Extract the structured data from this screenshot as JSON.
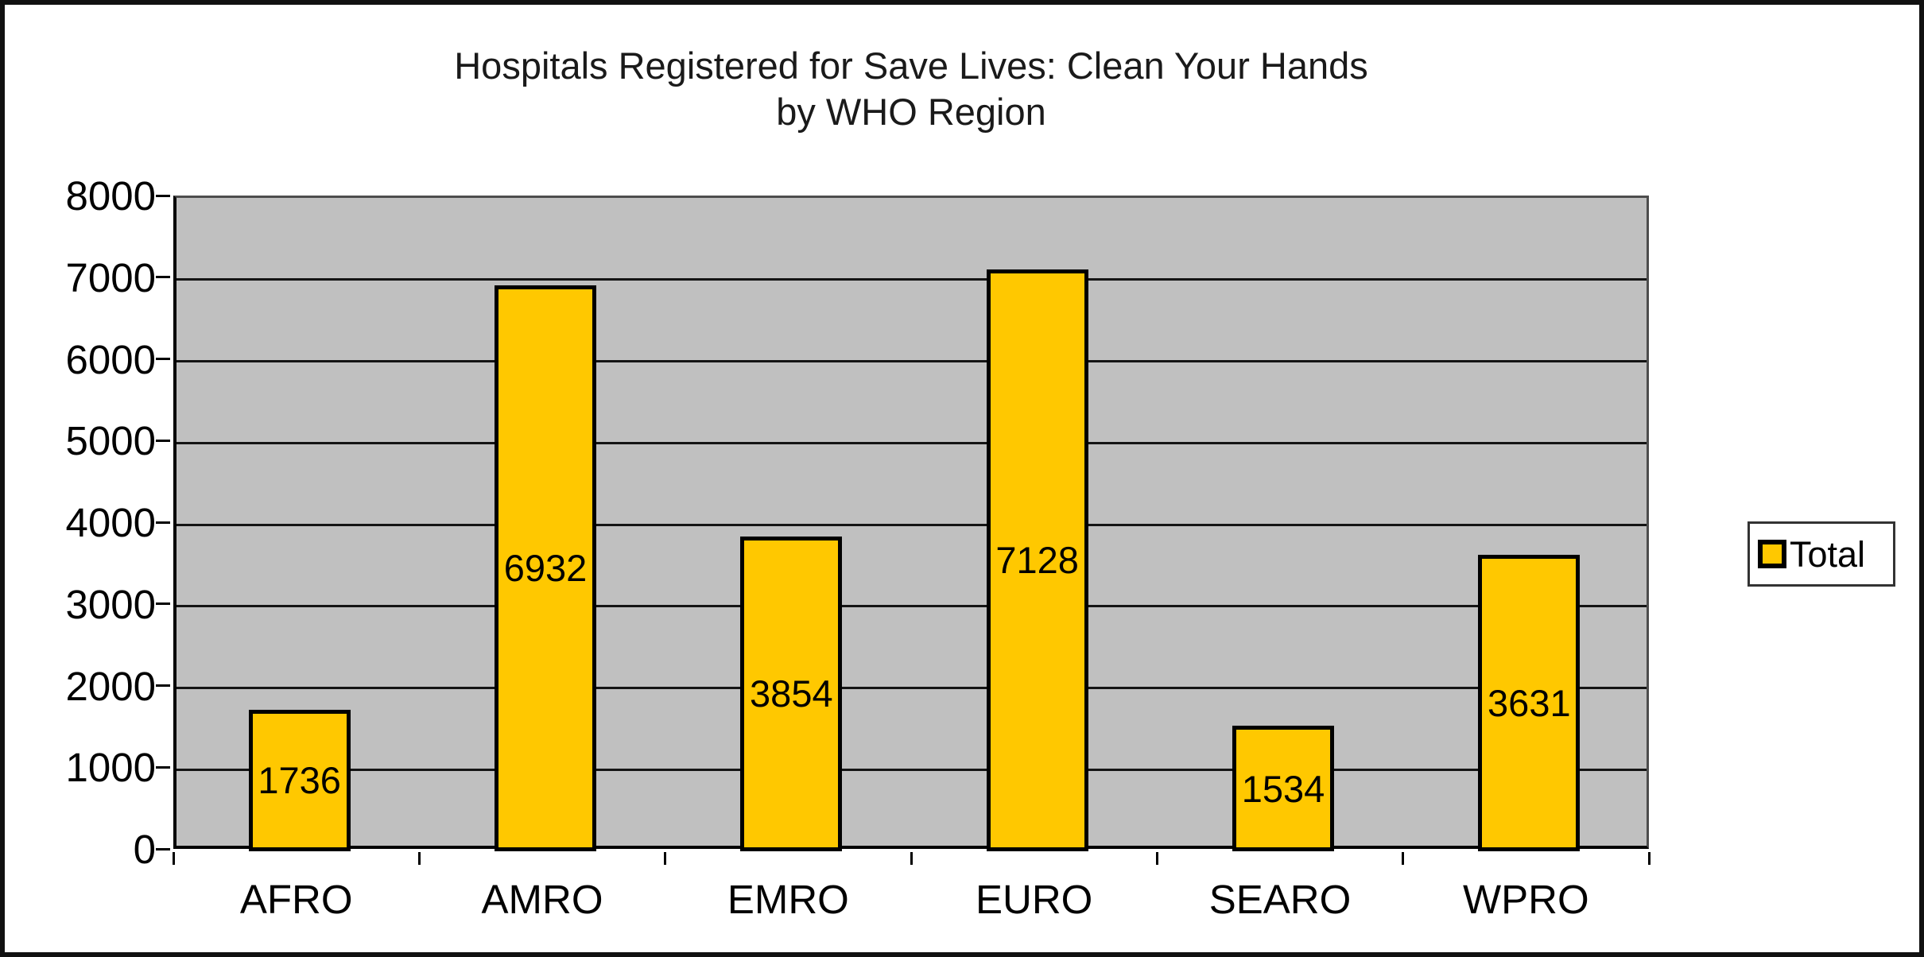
{
  "title": {
    "line1": "Hospitals Registered for Save Lives: Clean Your Hands",
    "line2": "by WHO Region"
  },
  "legend": {
    "label": "Total"
  },
  "chart_data": {
    "type": "bar",
    "title": "Hospitals Registered for Save Lives: Clean Your Hands by WHO Region",
    "categories": [
      "AFRO",
      "AMRO",
      "EMRO",
      "EURO",
      "SEARO",
      "WPRO"
    ],
    "series": [
      {
        "name": "Total",
        "values": [
          1736,
          6932,
          3854,
          7128,
          1534,
          3631
        ]
      }
    ],
    "data_labels": [
      "1736",
      "6932",
      "3854",
      "7128",
      "1534",
      "3631"
    ],
    "xlabel": "",
    "ylabel": "",
    "ylim": [
      0,
      8000
    ],
    "ytick_step": 1000,
    "ytick_labels": [
      "0",
      "1000",
      "2000",
      "3000",
      "4000",
      "5000",
      "6000",
      "7000",
      "8000"
    ],
    "grid": "horizontal",
    "legend_position": "right",
    "data_label_position": "center",
    "colors": {
      "bar_fill": "#FFC800",
      "bar_border": "#000000",
      "plot_background": "#C0C0C0",
      "gridline": "#141414",
      "text": "#000000",
      "chart_border": "#111111",
      "chart_background": "#FFFFFF"
    }
  }
}
